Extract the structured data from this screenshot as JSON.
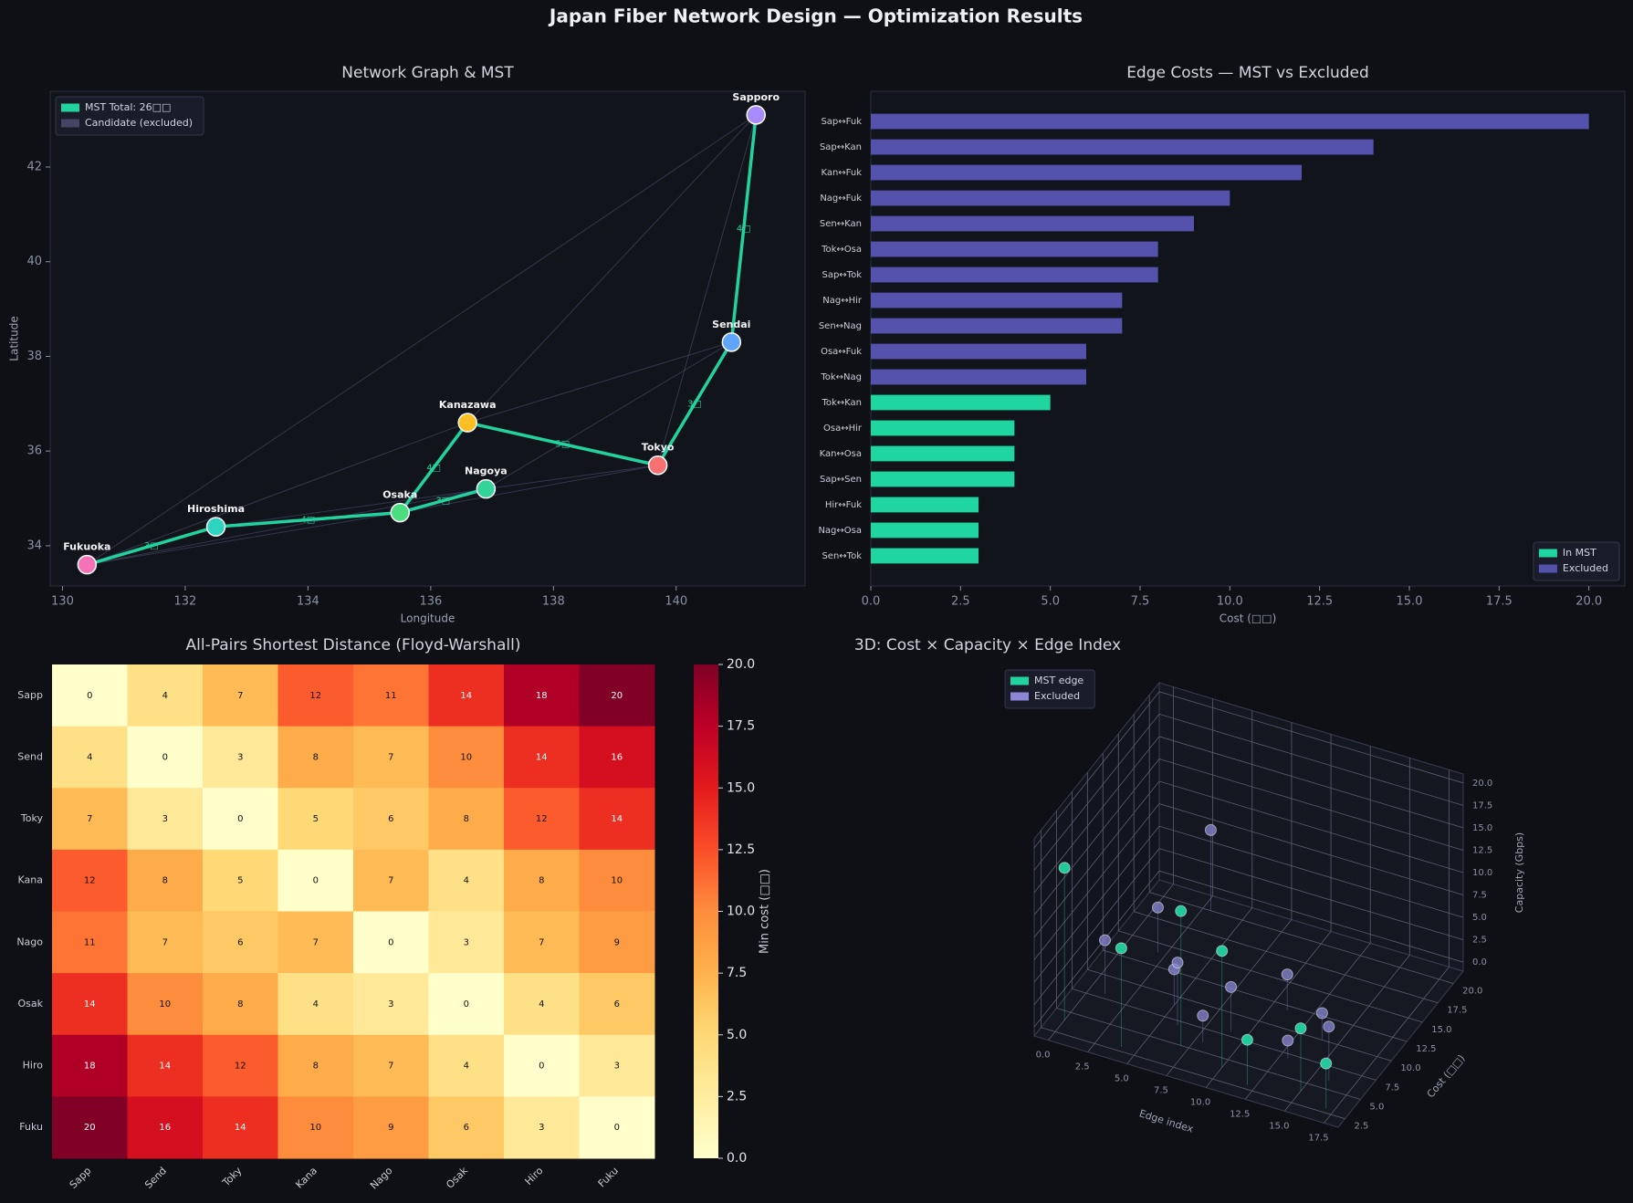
{
  "title": "Japan Fiber Network Design — Optimization Results",
  "chart_data": [
    {
      "type": "network",
      "title": "Network Graph & MST",
      "xlabel": "Longitude",
      "ylabel": "Latitude",
      "xlim": [
        129.8,
        142.1
      ],
      "ylim": [
        33.15,
        43.6
      ],
      "xticks": [
        130,
        132,
        134,
        136,
        138,
        140
      ],
      "yticks": [
        34,
        36,
        38,
        40,
        42
      ],
      "nodes": {
        "names": [
          "Sapporo",
          "Sendai",
          "Tokyo",
          "Kanazawa",
          "Nagoya",
          "Osaka",
          "Hiroshima",
          "Fukuoka"
        ],
        "x": [
          141.3,
          140.9,
          139.7,
          136.6,
          136.9,
          135.5,
          132.5,
          130.4
        ],
        "y": [
          43.1,
          38.3,
          35.7,
          36.6,
          35.2,
          34.7,
          34.4,
          33.6
        ],
        "colors": [
          "#a78bfa",
          "#60a5fa",
          "#f87171",
          "#fbbf24",
          "#34d399",
          "#4ade80",
          "#2dd4bf",
          "#f472b6"
        ]
      },
      "series": [
        {
          "name": "MST  Total: 26□□",
          "color": "#22d3a0",
          "edges": [
            [
              0,
              1
            ],
            [
              1,
              2
            ],
            [
              2,
              3
            ],
            [
              3,
              5
            ],
            [
              4,
              5
            ],
            [
              5,
              6
            ],
            [
              6,
              7
            ]
          ],
          "values": [
            4,
            3,
            5,
            4,
            3,
            4,
            3
          ],
          "value_labels": [
            "4□",
            "3□",
            "5□",
            "4□",
            "3□",
            "4□",
            "3□"
          ]
        },
        {
          "name": "Candidate (excluded)",
          "color": "#434563",
          "edges": [
            [
              0,
              7
            ],
            [
              0,
              3
            ],
            [
              3,
              7
            ],
            [
              4,
              7
            ],
            [
              1,
              3
            ],
            [
              2,
              5
            ],
            [
              0,
              2
            ],
            [
              4,
              6
            ],
            [
              1,
              4
            ],
            [
              5,
              7
            ],
            [
              2,
              4
            ]
          ]
        }
      ],
      "legend": "upper left"
    },
    {
      "type": "barh",
      "title": "Edge Costs — MST vs Excluded",
      "xlabel": "Cost (□□)",
      "categories": [
        "Sap↔Fuk",
        "Sap↔Kan",
        "Kan↔Fuk",
        "Nag↔Fuk",
        "Sen↔Kan",
        "Tok↔Osa",
        "Sap↔Tok",
        "Nag↔Hir",
        "Sen↔Nag",
        "Osa↔Fuk",
        "Tok↔Nag",
        "Tok↔Kan",
        "Osa↔Hir",
        "Kan↔Osa",
        "Sap↔Sen",
        "Hir↔Fuk",
        "Nag↔Osa",
        "Sen↔Tok"
      ],
      "series": [
        {
          "name": "In MST",
          "color": "#1fd6a0",
          "values": [
            null,
            null,
            null,
            null,
            null,
            null,
            null,
            null,
            null,
            null,
            null,
            5,
            4,
            4,
            4,
            3,
            3,
            3
          ]
        },
        {
          "name": "Excluded",
          "color": "#5552ad",
          "values": [
            20,
            14,
            12,
            10,
            9,
            8,
            8,
            7,
            7,
            6,
            6,
            null,
            null,
            null,
            null,
            null,
            null,
            null
          ]
        }
      ],
      "xlim": [
        0,
        21
      ],
      "xticks": [
        {
          "value": 0,
          "label": "0.0"
        },
        2.5,
        {
          "value": 5,
          "label": "5.0"
        },
        7.5,
        {
          "value": 10,
          "label": "10.0"
        },
        12.5,
        {
          "value": 15,
          "label": "15.0"
        },
        17.5,
        {
          "value": 20,
          "label": "20.0"
        }
      ],
      "legend": "lower right"
    },
    {
      "type": "heatmap",
      "title": "All-Pairs Shortest Distance (Floyd-Warshall)",
      "categories": [
        "Sapp",
        "Send",
        "Toky",
        "Kana",
        "Nago",
        "Osak",
        "Hiro",
        "Fuku"
      ],
      "values": [
        [
          0,
          4,
          7,
          12,
          11,
          14,
          18,
          20
        ],
        [
          4,
          0,
          3,
          8,
          7,
          10,
          14,
          16
        ],
        [
          7,
          3,
          0,
          5,
          6,
          8,
          12,
          14
        ],
        [
          12,
          8,
          5,
          0,
          7,
          4,
          8,
          10
        ],
        [
          11,
          7,
          6,
          7,
          0,
          3,
          7,
          9
        ],
        [
          14,
          10,
          8,
          4,
          3,
          0,
          4,
          6
        ],
        [
          18,
          14,
          12,
          8,
          7,
          4,
          0,
          3
        ],
        [
          20,
          16,
          14,
          10,
          9,
          6,
          3,
          0
        ]
      ],
      "colormap": "YlOrRd",
      "clim": [
        0,
        20
      ],
      "colorbar_label": "Min cost (□□)",
      "colorbar_ticks": [
        {
          "value": 0,
          "label": "0.0"
        },
        2.5,
        {
          "value": 5,
          "label": "5.0"
        },
        7.5,
        {
          "value": 10,
          "label": "10.0"
        },
        12.5,
        {
          "value": 15,
          "label": "15.0"
        },
        17.5,
        {
          "value": 20,
          "label": "20.0"
        }
      ]
    },
    {
      "type": "scatter3d",
      "title": "3D: Cost × Capacity × Edge Index",
      "xlabel": "Edge index",
      "ylabel": "Cost (□□)",
      "zlabel": "Capacity (Gbps)",
      "xlim": [
        -0.9,
        18.4
      ],
      "ylim": [
        1.4,
        21.6
      ],
      "zlim": [
        -1,
        21
      ],
      "xticks": [
        {
          "value": 0,
          "label": "0.0"
        },
        2.5,
        {
          "value": 5,
          "label": "5.0"
        },
        7.5,
        {
          "value": 10,
          "label": "10.0"
        },
        12.5,
        {
          "value": 15,
          "label": "15.0"
        },
        17.5
      ],
      "yticks": [
        2.5,
        {
          "value": 5,
          "label": "5.0"
        },
        7.5,
        {
          "value": 10,
          "label": "10.0"
        },
        12.5,
        {
          "value": 15,
          "label": "15.0"
        },
        17.5,
        {
          "value": 20,
          "label": "20.0"
        }
      ],
      "zticks": [
        {
          "value": 0,
          "label": "0.0"
        },
        2.5,
        {
          "value": 5,
          "label": "5.0"
        },
        7.5,
        {
          "value": 10,
          "label": "10.0"
        },
        12.5,
        {
          "value": 15,
          "label": "15.0"
        },
        17.5,
        {
          "value": 20,
          "label": "20.0"
        }
      ],
      "series": [
        {
          "name": "MST edge",
          "color": "#22d3a0",
          "x": [
            0,
            4,
            7,
            10,
            12,
            15,
            17
          ],
          "y": [
            4,
            3,
            5,
            4,
            3,
            4,
            3
          ],
          "z": [
            16,
            10,
            14,
            12,
            4,
            6,
            4
          ]
        },
        {
          "name": "Excluded",
          "color": "#8b87d6",
          "x": [
            1,
            2,
            3,
            5,
            6,
            8,
            9,
            11,
            13,
            14,
            16
          ],
          "y": [
            8,
            14,
            20,
            9,
            7,
            6,
            8,
            12,
            7,
            10,
            6
          ],
          "z": [
            5,
            4,
            8,
            3,
            6,
            2,
            4,
            3,
            1,
            2,
            5
          ]
        }
      ],
      "legend": "upper left"
    }
  ]
}
